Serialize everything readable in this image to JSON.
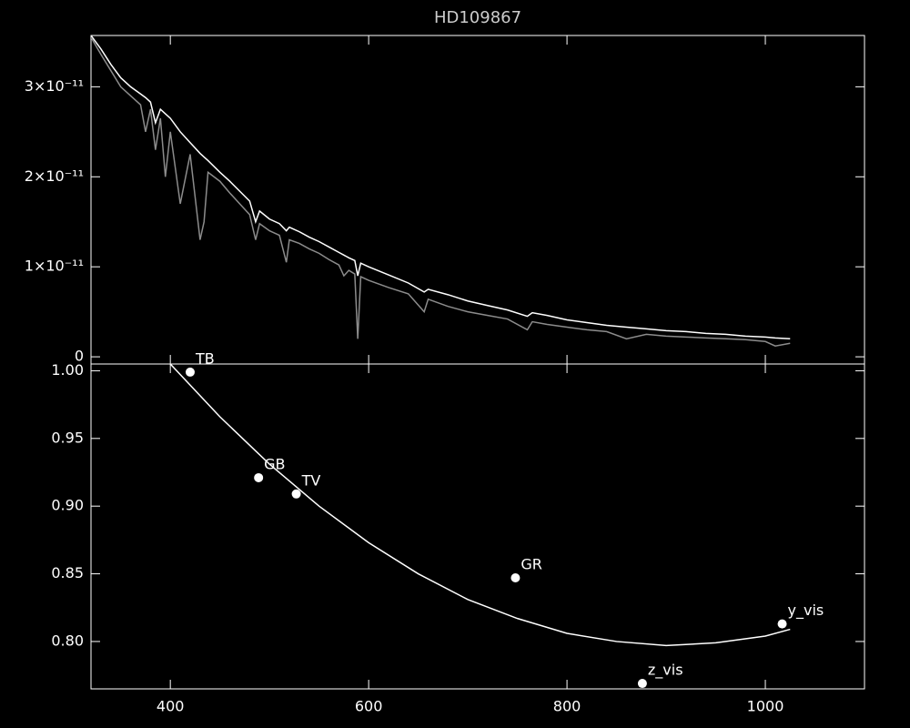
{
  "chart_data": [
    {
      "type": "line",
      "title": "HD109867",
      "x": [
        320,
        330,
        340,
        350,
        360,
        370,
        375,
        380,
        385,
        390,
        395,
        400,
        410,
        420,
        430,
        434,
        438,
        450,
        460,
        470,
        480,
        486,
        490,
        500,
        510,
        517,
        520,
        530,
        540,
        550,
        560,
        570,
        575,
        580,
        586,
        589,
        592,
        600,
        620,
        640,
        656,
        660,
        680,
        700,
        720,
        740,
        760,
        765,
        780,
        800,
        820,
        840,
        860,
        880,
        900,
        920,
        940,
        960,
        980,
        1000,
        1010,
        1025
      ],
      "series": [
        {
          "color": "#ffffff",
          "values": [
            3.57e-11,
            3.42e-11,
            3.25e-11,
            3.1e-11,
            3e-11,
            2.92e-11,
            2.88e-11,
            2.83e-11,
            2.6e-11,
            2.75e-11,
            2.7e-11,
            2.65e-11,
            2.5e-11,
            2.38e-11,
            2.26e-11,
            2.22e-11,
            2.18e-11,
            2.05e-11,
            1.95e-11,
            1.84e-11,
            1.73e-11,
            1.5e-11,
            1.62e-11,
            1.53e-11,
            1.48e-11,
            1.4e-11,
            1.44e-11,
            1.39e-11,
            1.33e-11,
            1.28e-11,
            1.22e-11,
            1.16e-11,
            1.13e-11,
            1.1e-11,
            1.07e-11,
            9e-12,
            1.04e-11,
            1e-11,
            9.1e-12,
            8.2e-12,
            7.2e-12,
            7.5e-12,
            6.9e-12,
            6.2e-12,
            5.7e-12,
            5.2e-12,
            4.5e-12,
            4.9e-12,
            4.6e-12,
            4.1e-12,
            3.8e-12,
            3.5e-12,
            3.3e-12,
            3.1e-12,
            2.9e-12,
            2.8e-12,
            2.6e-12,
            2.5e-12,
            2.3e-12,
            2.2e-12,
            2.1e-12,
            2e-12
          ]
        },
        {
          "color": "#8c8c8c",
          "values": [
            3.55e-11,
            3.36e-11,
            3.18e-11,
            3e-11,
            2.9e-11,
            2.8e-11,
            2.5e-11,
            2.75e-11,
            2.3e-11,
            2.65e-11,
            2e-11,
            2.5e-11,
            1.7e-11,
            2.25e-11,
            1.3e-11,
            1.5e-11,
            2.05e-11,
            1.95e-11,
            1.82e-11,
            1.7e-11,
            1.58e-11,
            1.3e-11,
            1.48e-11,
            1.4e-11,
            1.35e-11,
            1.05e-11,
            1.3e-11,
            1.26e-11,
            1.2e-11,
            1.15e-11,
            1.08e-11,
            1.02e-11,
            9e-12,
            9.6e-12,
            9.2e-12,
            2e-12,
            8.9e-12,
            8.5e-12,
            7.7e-12,
            7e-12,
            5e-12,
            6.4e-12,
            5.6e-12,
            5e-12,
            4.6e-12,
            4.2e-12,
            3e-12,
            3.9e-12,
            3.6e-12,
            3.3e-12,
            3e-12,
            2.8e-12,
            2e-12,
            2.5e-12,
            2.3e-12,
            2.2e-12,
            2.1e-12,
            2e-12,
            1.9e-12,
            1.7e-12,
            1.2e-12,
            1.5e-12
          ]
        }
      ],
      "xlim": [
        320,
        1100
      ],
      "xticks": [
        400,
        600,
        800,
        1000
      ],
      "ylim": [
        -8e-13,
        3.57e-11
      ],
      "yticks": [
        0,
        {
          "value": 1e-11,
          "label": "1×10⁻¹¹"
        },
        {
          "value": 2e-11,
          "label": "2×10⁻¹¹"
        },
        {
          "value": 3e-11,
          "label": "3×10⁻¹¹"
        }
      ]
    },
    {
      "type": "scatter",
      "series": [
        {
          "mode": "markers",
          "color": "#ffffff",
          "x": [
            420,
            489,
            527,
            748,
            876,
            1017
          ],
          "values": [
            0.999,
            0.921,
            0.909,
            0.847,
            0.769,
            0.813
          ],
          "labels": [
            "TB",
            "GB",
            "TV",
            "GR",
            "z_vis",
            "y_vis"
          ]
        },
        {
          "mode": "line",
          "color": "#ffffff",
          "x": [
            400,
            450,
            500,
            550,
            600,
            650,
            700,
            750,
            800,
            850,
            900,
            950,
            1000,
            1025
          ],
          "values": [
            1.005,
            0.966,
            0.931,
            0.9,
            0.873,
            0.85,
            0.831,
            0.817,
            0.806,
            0.8,
            0.797,
            0.799,
            0.804,
            0.809
          ]
        }
      ],
      "xlim": [
        320,
        1100
      ],
      "xticks": [
        400,
        600,
        800,
        1000
      ],
      "ylim": [
        0.765,
        1.005
      ],
      "yticks": [
        {
          "value": 0.8,
          "label": "0.80"
        },
        0.85,
        {
          "value": 0.9,
          "label": "0.90"
        },
        0.95,
        {
          "value": 1,
          "label": "1.00"
        }
      ]
    }
  ]
}
